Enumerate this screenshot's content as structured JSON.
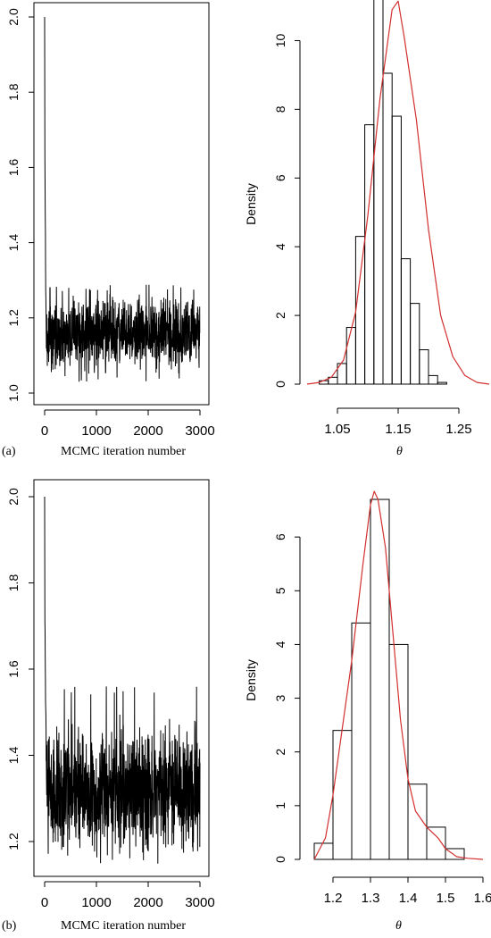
{
  "panels": [
    {
      "label": "(a)",
      "caption": "MCMC iteration number",
      "theta_label": "θ"
    },
    {
      "label": "(b)",
      "caption": "MCMC iteration number",
      "theta_label": "θ"
    }
  ],
  "chart_data": [
    {
      "type": "line",
      "panel": "a-left",
      "title": "",
      "xlabel": "MCMC iteration number",
      "ylabel": "",
      "xlim": [
        0,
        3000
      ],
      "ylim": [
        1.0,
        2.0
      ],
      "xticks": [
        0,
        1000,
        2000,
        3000
      ],
      "yticks": [
        1.0,
        1.2,
        1.4,
        1.6,
        1.8,
        2.0
      ],
      "yticklabels": [
        "1.0",
        "1.2",
        "1.4",
        "1.6",
        "1.8",
        "2.0"
      ],
      "series": [
        {
          "x_start": 0,
          "x_end": 3000,
          "start_value": 2.0,
          "burn_in_end": 30,
          "mean": 1.16,
          "low": 1.03,
          "high": 1.29,
          "color": "#000000"
        }
      ],
      "grid": false
    },
    {
      "type": "bar",
      "panel": "a-right",
      "title": "",
      "xlabel": "θ",
      "ylabel": "Density",
      "xlim": [
        1.0,
        1.3
      ],
      "ylim": [
        0,
        11
      ],
      "xticks": [
        1.05,
        1.15,
        1.25
      ],
      "yticks": [
        0,
        2,
        4,
        6,
        8,
        10
      ],
      "bin_edges": [
        1.02,
        1.035,
        1.05,
        1.065,
        1.08,
        1.095,
        1.11,
        1.125,
        1.14,
        1.155,
        1.17,
        1.185,
        1.2,
        1.215,
        1.23,
        1.245,
        1.26,
        1.275
      ],
      "values": [
        0.1,
        0.2,
        0.6,
        1.65,
        4.3,
        7.55,
        11.3,
        9.05,
        7.8,
        3.65,
        2.35,
        1.0,
        0.25,
        0.05,
        0.0,
        0.0,
        0.0
      ],
      "density_curve": {
        "color": "#d32f2f",
        "x": [
          1.0,
          1.02,
          1.04,
          1.06,
          1.08,
          1.1,
          1.12,
          1.14,
          1.15,
          1.16,
          1.18,
          1.2,
          1.22,
          1.24,
          1.26,
          1.28,
          1.3
        ],
        "y": [
          0.0,
          0.05,
          0.2,
          0.7,
          2.1,
          4.9,
          8.3,
          10.9,
          11.15,
          10.1,
          7.7,
          4.5,
          2.0,
          0.8,
          0.25,
          0.05,
          0.0
        ]
      },
      "grid": false
    },
    {
      "type": "line",
      "panel": "b-left",
      "title": "",
      "xlabel": "MCMC iteration number",
      "ylabel": "",
      "xlim": [
        0,
        3000
      ],
      "ylim": [
        1.2,
        2.0
      ],
      "xticks": [
        0,
        1000,
        2000,
        3000
      ],
      "yticks": [
        1.2,
        1.4,
        1.6,
        1.8,
        2.0
      ],
      "yticklabels": [
        "1.2",
        "1.4",
        "1.6",
        "1.8",
        "2.0"
      ],
      "series": [
        {
          "x_start": 0,
          "x_end": 3000,
          "start_value": 2.0,
          "burn_in_end": 40,
          "mean": 1.32,
          "low": 1.17,
          "high": 1.56,
          "color": "#000000"
        }
      ],
      "grid": false
    },
    {
      "type": "bar",
      "panel": "b-right",
      "title": "",
      "xlabel": "θ",
      "ylabel": "Density",
      "xlim": [
        1.15,
        1.6
      ],
      "ylim": [
        0,
        7
      ],
      "xticks": [
        1.2,
        1.3,
        1.4,
        1.5,
        1.6
      ],
      "yticks": [
        0,
        1,
        2,
        3,
        4,
        5,
        6
      ],
      "bin_edges": [
        1.15,
        1.2,
        1.25,
        1.3,
        1.35,
        1.4,
        1.45,
        1.5,
        1.55,
        1.6
      ],
      "values": [
        0.3,
        2.4,
        4.4,
        6.7,
        4.0,
        1.4,
        0.6,
        0.2,
        0.0
      ],
      "density_curve": {
        "color": "#d32f2f",
        "x": [
          1.15,
          1.18,
          1.2,
          1.22,
          1.25,
          1.28,
          1.3,
          1.31,
          1.32,
          1.34,
          1.36,
          1.38,
          1.4,
          1.42,
          1.45,
          1.48,
          1.5,
          1.53,
          1.56,
          1.6
        ],
        "y": [
          0.0,
          0.4,
          1.2,
          2.2,
          3.7,
          5.5,
          6.6,
          6.85,
          6.7,
          5.8,
          4.2,
          2.6,
          1.5,
          0.9,
          0.6,
          0.4,
          0.2,
          0.05,
          0.02,
          0.0
        ]
      },
      "grid": false
    }
  ]
}
